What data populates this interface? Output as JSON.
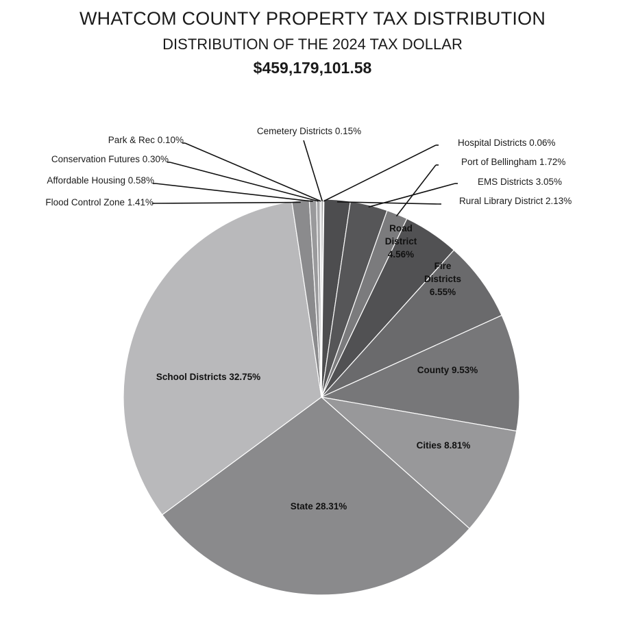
{
  "header": {
    "title": "WHATCOM COUNTY PROPERTY TAX DISTRIBUTION",
    "subtitle": "DISTRIBUTION OF THE 2024 TAX DOLLAR",
    "total": "$459,179,101.58"
  },
  "chart_data": {
    "type": "pie",
    "title": "WHATCOM COUNTY PROPERTY TAX DISTRIBUTION",
    "subtitle": "DISTRIBUTION OF THE 2024 TAX DOLLAR",
    "total": "$459,179,101.58",
    "start": "12 o'clock, clockwise",
    "slices": [
      {
        "key": "cemetery",
        "label": "Cemetery Districts 0.15%",
        "value": 0.15,
        "color": "#999999",
        "callout": true
      },
      {
        "key": "hospital",
        "label": "Hospital Districts 0.06%",
        "value": 0.06,
        "color": "#8c8c8c",
        "callout": true
      },
      {
        "key": "emsdist_dark",
        "label": "",
        "value": 0,
        "color": "#555555",
        "callout": false,
        "hidden": true
      },
      {
        "key": "rural_library",
        "label": "Rural Library District 2.13%",
        "value": 2.13,
        "color": "#4d4d4f",
        "callout": true
      },
      {
        "key": "ems",
        "label": "EMS Districts 3.05%",
        "value": 3.05,
        "color": "#565658",
        "callout": true
      },
      {
        "key": "port",
        "label": "Port of Bellingham 1.72%",
        "value": 1.72,
        "color": "#7b7b7d",
        "callout": true
      },
      {
        "key": "road",
        "label": "Road\nDistrict\n4.56%",
        "value": 4.56,
        "color": "#515153",
        "callout": false
      },
      {
        "key": "fire",
        "label": "Fire\nDistricts\n6.55%",
        "value": 6.55,
        "color": "#6a6a6c",
        "callout": false
      },
      {
        "key": "county",
        "label": "County 9.53%",
        "value": 9.53,
        "color": "#777779",
        "callout": false
      },
      {
        "key": "cities",
        "label": "Cities 8.81%",
        "value": 8.81,
        "color": "#98989a",
        "callout": false
      },
      {
        "key": "state",
        "label": "State 28.31%",
        "value": 28.31,
        "color": "#8a8a8c",
        "callout": false
      },
      {
        "key": "school",
        "label": "School Districts 32.75%",
        "value": 32.75,
        "color": "#b9b9bb",
        "callout": false
      },
      {
        "key": "flood",
        "label": "Flood Control Zone 1.41%",
        "value": 1.41,
        "color": "#8b8b8d",
        "callout": true
      },
      {
        "key": "affordable",
        "label": "Affordable Housing 0.58%",
        "value": 0.58,
        "color": "#9a9a9c",
        "callout": true
      },
      {
        "key": "conservation",
        "label": "Conservation Futures 0.30%",
        "value": 0.3,
        "color": "#a8a8aa",
        "callout": true
      },
      {
        "key": "parkrec",
        "label": "Park & Rec 0.10%",
        "value": 0.1,
        "color": "#b3b3b5",
        "callout": true
      }
    ]
  }
}
